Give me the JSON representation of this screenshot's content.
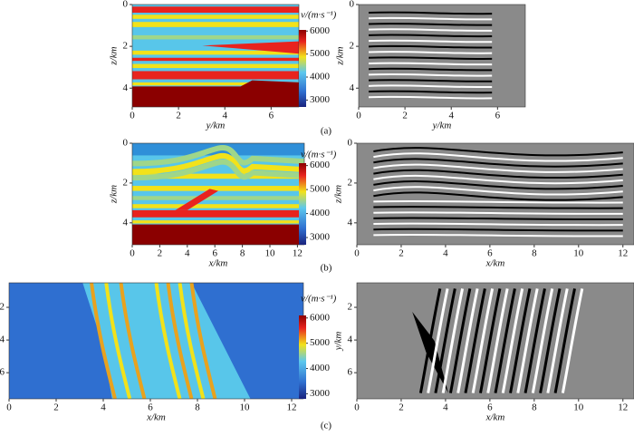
{
  "panels": [
    {
      "caption": "(a)",
      "velocity": {
        "xlabel": "y/km",
        "ylabel": "z/km",
        "xlim": [
          0,
          7.2
        ],
        "ylim": [
          0,
          4.9
        ],
        "xticks": [
          0,
          2,
          4,
          6
        ],
        "yticks": [
          0,
          2,
          4
        ],
        "colorbar": {
          "label": "v/(m·s⁻¹)",
          "lim": [
            2700,
            6050
          ],
          "ticks": [
            3000,
            4000,
            5000,
            6000
          ]
        }
      },
      "image": {
        "xlabel": "y/km",
        "ylabel": "z/km",
        "xlim": [
          0,
          7.2
        ],
        "ylim": [
          0,
          4.9
        ],
        "xticks": [
          0,
          2,
          4,
          6
        ],
        "yticks": [
          0,
          2,
          4
        ]
      }
    },
    {
      "caption": "(b)",
      "velocity": {
        "xlabel": "x/km",
        "ylabel": "z/km",
        "xlim": [
          0,
          12.5
        ],
        "ylim": [
          0,
          5.1
        ],
        "xticks": [
          0,
          2,
          4,
          6,
          8,
          10,
          12
        ],
        "yticks": [
          0,
          2,
          4
        ],
        "colorbar": {
          "label": "v/(m·s⁻¹)",
          "lim": [
            2700,
            6100
          ],
          "ticks": [
            3000,
            4000,
            5000,
            6000
          ]
        }
      },
      "image": {
        "xlabel": "x/km",
        "ylabel": "z/km",
        "xlim": [
          0,
          12.5
        ],
        "ylim": [
          0,
          5.1
        ],
        "xticks": [
          0,
          2,
          4,
          6,
          8,
          10,
          12
        ],
        "yticks": [
          0,
          2,
          4
        ]
      }
    },
    {
      "caption": "(c)",
      "velocity": {
        "xlabel": "x/km",
        "ylabel": "y/km",
        "xlim": [
          0,
          12.5
        ],
        "ylim": [
          0.5,
          7.6
        ],
        "xticks": [
          0,
          2,
          4,
          6,
          8,
          10,
          12
        ],
        "yticks": [
          2,
          4,
          6
        ],
        "colorbar": {
          "label": "v/(m·s⁻¹)",
          "lim": [
            2800,
            6100
          ],
          "ticks": [
            3000,
            4000,
            5000,
            6000
          ]
        }
      },
      "image": {
        "xlabel": "x/km",
        "ylabel": "y/km",
        "xlim": [
          0,
          12.5
        ],
        "ylim": [
          0.5,
          7.6
        ],
        "xticks": [
          0,
          2,
          4,
          6,
          8,
          10,
          12
        ],
        "yticks": [
          2,
          4,
          6
        ]
      }
    }
  ]
}
